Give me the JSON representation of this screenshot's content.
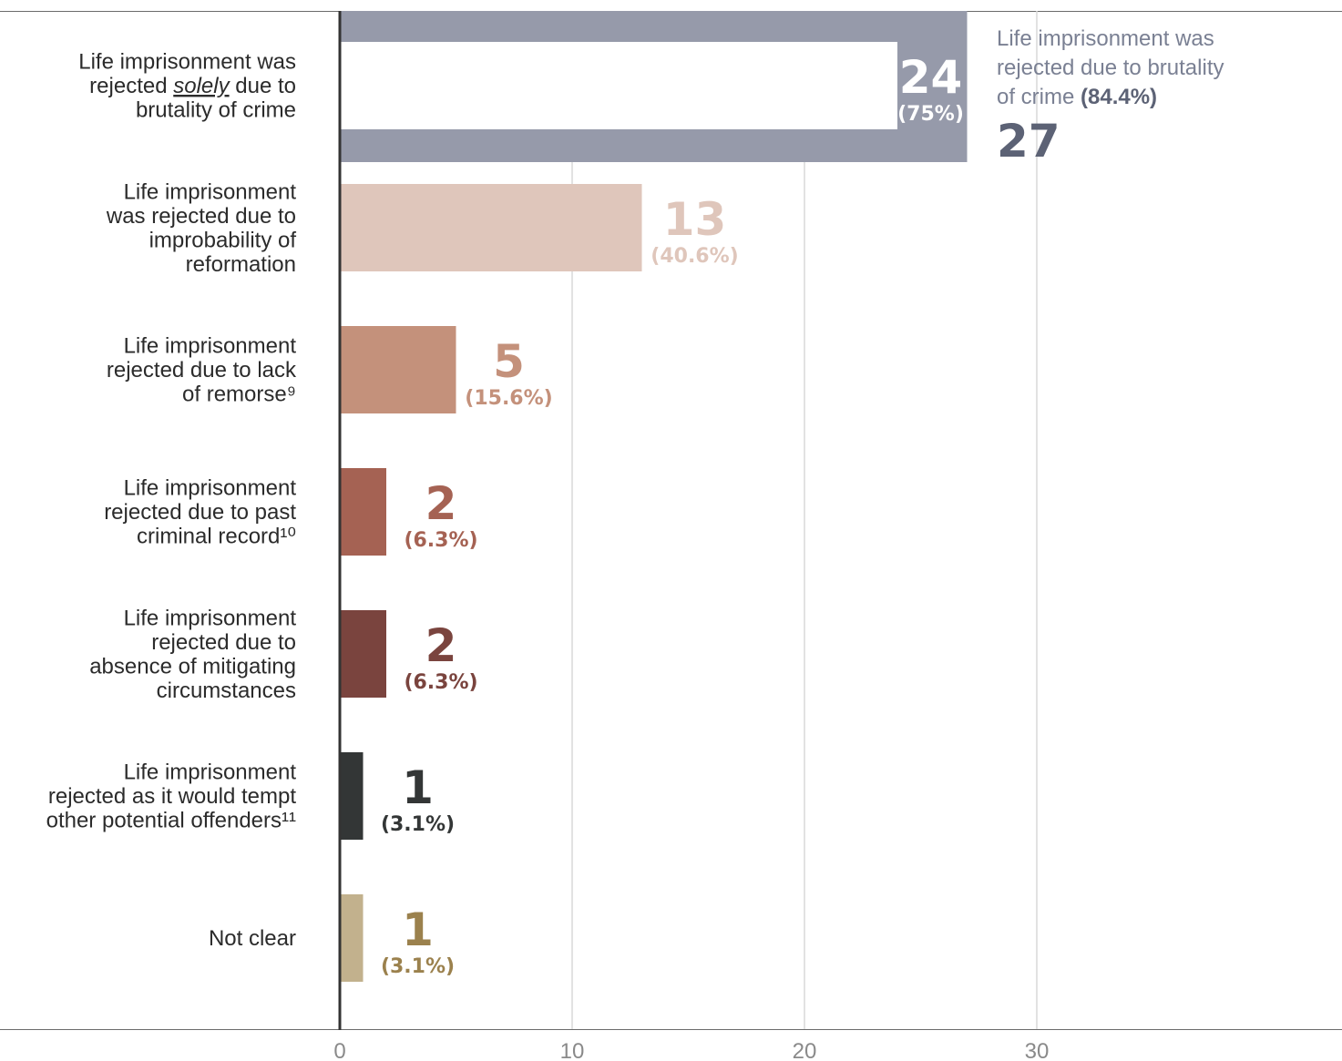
{
  "chart_data": {
    "type": "bar",
    "orientation": "horizontal",
    "title": "",
    "xlabel": "",
    "ylabel": "",
    "xlim": [
      0,
      43
    ],
    "x_ticks": [
      0,
      10,
      20,
      30
    ],
    "grid": true,
    "categories": [
      [
        "Life imprisonment was",
        "rejected solely due to",
        "brutality of crime"
      ],
      [
        "Life imprisonment",
        "was rejected due to",
        "improbability of",
        "reformation"
      ],
      [
        "Life imprisonment",
        "rejected due to lack",
        "of remorse⁹"
      ],
      [
        "Life imprisonment",
        "rejected due to past",
        "criminal record¹⁰"
      ],
      [
        "Life imprisonment",
        "rejected due to",
        "absence of mitigating",
        "circumstances"
      ],
      [
        "Life imprisonment",
        "rejected as it would tempt",
        "other potential offenders¹¹"
      ],
      [
        "Not clear"
      ]
    ],
    "values": [
      24,
      13,
      5,
      2,
      2,
      1,
      1
    ],
    "value_labels": [
      "24",
      "13",
      "5",
      "2",
      "2",
      "1",
      "1"
    ],
    "percent_labels": [
      "(75%)",
      "(40.6%)",
      "(15.6%)",
      "(6.3%)",
      "(6.3%)",
      "(3.1%)",
      "(3.1%)"
    ],
    "bar_colors": [
      "#ffffff",
      "#dfc6bb",
      "#c4917b",
      "#a56253",
      "#7a443e",
      "#333636",
      "#c2b18d"
    ],
    "label_colors": [
      "#ffffff",
      "#dfc6bb",
      "#c4917b",
      "#a56253",
      "#7a443e",
      "#333636",
      "#9b814d"
    ],
    "outer_bar": {
      "category_index": 0,
      "value": 27,
      "value_label": "27",
      "color": "#969aaa",
      "note_lines": [
        "Life imprisonment was",
        "rejected due to brutality"
      ],
      "note_last_prefix": "of crime ",
      "note_last_bold": "(84.4%)",
      "number_color": "#5c6275"
    }
  }
}
